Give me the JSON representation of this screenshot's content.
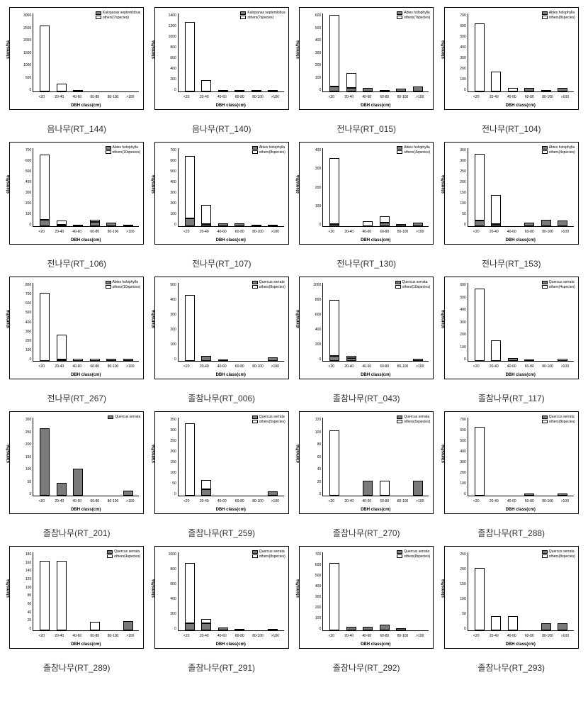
{
  "axis": {
    "ylabel": "stems/ha",
    "xlabel": "DBH class(cm)",
    "xticks": [
      "<20",
      "20-40",
      "40-60",
      "60-80",
      "80-100",
      ">100"
    ]
  },
  "charts": [
    {
      "caption": "음나무(RT_144)",
      "legend": [
        "Kalopanax septemlobus",
        "others(?species)"
      ],
      "ymax": 3000,
      "yticks": [
        3000,
        2500,
        2000,
        1500,
        1000,
        500,
        0
      ],
      "grey": [
        0,
        0,
        0,
        0,
        0,
        0
      ],
      "white": [
        2550,
        300,
        10,
        0,
        0,
        0
      ]
    },
    {
      "caption": "음나무(RT_140)",
      "legend": [
        "Kalopanax septemlobus",
        "others(?species)"
      ],
      "ymax": 1400,
      "yticks": [
        1400,
        1200,
        1000,
        800,
        600,
        400,
        200,
        0
      ],
      "grey": [
        0,
        0,
        0,
        0,
        0,
        0
      ],
      "white": [
        1250,
        200,
        10,
        30,
        10,
        30
      ]
    },
    {
      "caption": "전나무(RT_015)",
      "legend": [
        "Abies holophylla",
        "others(?species)"
      ],
      "ymax": 600,
      "yticks": [
        600,
        500,
        400,
        300,
        200,
        100,
        0
      ],
      "grey": [
        40,
        30,
        30,
        10,
        20,
        40
      ],
      "white": [
        550,
        110,
        0,
        0,
        0,
        0
      ]
    },
    {
      "caption": "전나무(RT_104)",
      "legend": [
        "Abies holophylla",
        "others(8species)"
      ],
      "ymax": 700,
      "yticks": [
        700,
        600,
        500,
        400,
        300,
        200,
        100,
        0
      ],
      "grey": [
        0,
        0,
        0,
        30,
        10,
        30
      ],
      "white": [
        610,
        180,
        30,
        0,
        0,
        0
      ]
    },
    {
      "caption": "전나무(RT_106)",
      "legend": [
        "Abies holophylla",
        "others(10species)"
      ],
      "ymax": 700,
      "yticks": [
        700,
        600,
        500,
        400,
        300,
        200,
        100,
        0
      ],
      "grey": [
        60,
        10,
        10,
        40,
        30,
        0
      ],
      "white": [
        580,
        40,
        0,
        20,
        0,
        10
      ]
    },
    {
      "caption": "전나무(RT_107)",
      "legend": [
        "Abies holophylla",
        "others(8species)"
      ],
      "ymax": 700,
      "yticks": [
        700,
        600,
        500,
        400,
        300,
        200,
        100,
        0
      ],
      "grey": [
        70,
        20,
        25,
        25,
        10,
        10
      ],
      "white": [
        560,
        170,
        0,
        0,
        0,
        0
      ]
    },
    {
      "caption": "전나무(RT_130)",
      "legend": [
        "Abies holophylla",
        "others(4species)"
      ],
      "ymax": 400,
      "yticks": [
        400,
        300,
        200,
        100,
        0
      ],
      "grey": [
        10,
        0,
        0,
        20,
        10,
        20
      ],
      "white": [
        340,
        0,
        25,
        30,
        0,
        0
      ]
    },
    {
      "caption": "전나무(RT_153)",
      "legend": [
        "Abies holophylla",
        "others(4species)"
      ],
      "ymax": 350,
      "yticks": [
        350,
        300,
        250,
        200,
        150,
        100,
        50,
        0
      ],
      "grey": [
        25,
        10,
        0,
        15,
        30,
        25
      ],
      "white": [
        300,
        130,
        0,
        0,
        0,
        0
      ]
    },
    {
      "caption": "전나무(RT_267)",
      "legend": [
        "Abies holophylla",
        "others(10species)"
      ],
      "ymax": 800,
      "yticks": [
        800,
        700,
        600,
        500,
        400,
        300,
        200,
        100,
        0
      ],
      "grey": [
        0,
        5,
        0,
        0,
        25,
        25
      ],
      "white": [
        695,
        255,
        20,
        20,
        0,
        0
      ]
    },
    {
      "caption": "졸참나무(RT_006)",
      "legend": [
        "Quercus serrata",
        "others(8species)"
      ],
      "ymax": 500,
      "yticks": [
        500,
        400,
        300,
        200,
        100,
        0
      ],
      "grey": [
        0,
        30,
        10,
        0,
        0,
        25
      ],
      "white": [
        425,
        0,
        0,
        0,
        0,
        0
      ]
    },
    {
      "caption": "졸참나무(RT_043)",
      "legend": [
        "Quercus serrata",
        "others(10species)"
      ],
      "ymax": 1000,
      "yticks": [
        1000,
        800,
        600,
        400,
        200,
        0
      ],
      "grey": [
        60,
        40,
        0,
        0,
        0,
        25
      ],
      "white": [
        720,
        20,
        0,
        0,
        0,
        0
      ]
    },
    {
      "caption": "졸참나무(RT_117)",
      "legend": [
        "Quercus serrata",
        "others(4species)"
      ],
      "ymax": 600,
      "yticks": [
        600,
        500,
        400,
        300,
        200,
        100,
        0
      ],
      "grey": [
        0,
        0,
        20,
        5,
        0,
        0
      ],
      "white": [
        555,
        160,
        0,
        0,
        0,
        15
      ]
    },
    {
      "caption": "졸참나무(RT_201)",
      "legend": [
        "Quercus serrata",
        ""
      ],
      "ymax": 300,
      "yticks": [
        300,
        250,
        200,
        150,
        100,
        50,
        0
      ],
      "grey": [
        260,
        50,
        105,
        0,
        0,
        20
      ],
      "white": [
        0,
        0,
        0,
        0,
        0,
        0
      ]
    },
    {
      "caption": "졸참나무(RT_259)",
      "legend": [
        "Quercus serrata",
        "others(5species)"
      ],
      "ymax": 350,
      "yticks": [
        350,
        300,
        250,
        200,
        150,
        100,
        50,
        0
      ],
      "grey": [
        0,
        30,
        0,
        0,
        0,
        20
      ],
      "white": [
        325,
        40,
        0,
        0,
        0,
        0
      ]
    },
    {
      "caption": "졸참나무(RT_270)",
      "legend": [
        "Quercus serrata",
        "others(5species)"
      ],
      "ymax": 120,
      "yticks": [
        120,
        100,
        80,
        60,
        40,
        20,
        0
      ],
      "grey": [
        0,
        0,
        23,
        0,
        0,
        23
      ],
      "white": [
        100,
        0,
        0,
        23,
        0,
        0
      ]
    },
    {
      "caption": "졸참나무(RT_288)",
      "legend": [
        "Quercus serrata",
        "others(8species)"
      ],
      "ymax": 700,
      "yticks": [
        700,
        600,
        500,
        400,
        300,
        200,
        100,
        0
      ],
      "grey": [
        0,
        0,
        0,
        20,
        0,
        20
      ],
      "white": [
        615,
        0,
        0,
        0,
        0,
        0
      ]
    },
    {
      "caption": "졸참나무(RT_289)",
      "legend": [
        "Quercus serrata",
        "others(4species)"
      ],
      "ymax": 180,
      "yticks": [
        180,
        160,
        140,
        120,
        100,
        80,
        60,
        40,
        20,
        0
      ],
      "grey": [
        0,
        0,
        0,
        0,
        0,
        22
      ],
      "white": [
        160,
        160,
        0,
        20,
        0,
        0
      ]
    },
    {
      "caption": "졸참나무(RT_291)",
      "legend": [
        "Quercus serrata",
        "others(8species)"
      ],
      "ymax": 1000,
      "yticks": [
        1000,
        800,
        600,
        400,
        200,
        0
      ],
      "grey": [
        90,
        90,
        40,
        20,
        0,
        20
      ],
      "white": [
        770,
        60,
        0,
        0,
        0,
        0
      ]
    },
    {
      "caption": "졸참나무(RT_292)",
      "legend": [
        "Quercus serrata",
        "others(8species)"
      ],
      "ymax": 700,
      "yticks": [
        700,
        600,
        500,
        400,
        300,
        200,
        100,
        0
      ],
      "grey": [
        0,
        30,
        30,
        50,
        20,
        0
      ],
      "white": [
        605,
        0,
        0,
        0,
        0,
        0
      ]
    },
    {
      "caption": "졸참나무(RT_293)",
      "legend": [
        "Quercus serrata",
        "others(8species)"
      ],
      "ymax": 250,
      "yticks": [
        250,
        200,
        150,
        100,
        50,
        0
      ],
      "grey": [
        0,
        0,
        0,
        0,
        22,
        22
      ],
      "white": [
        200,
        45,
        45,
        0,
        0,
        0
      ]
    }
  ]
}
